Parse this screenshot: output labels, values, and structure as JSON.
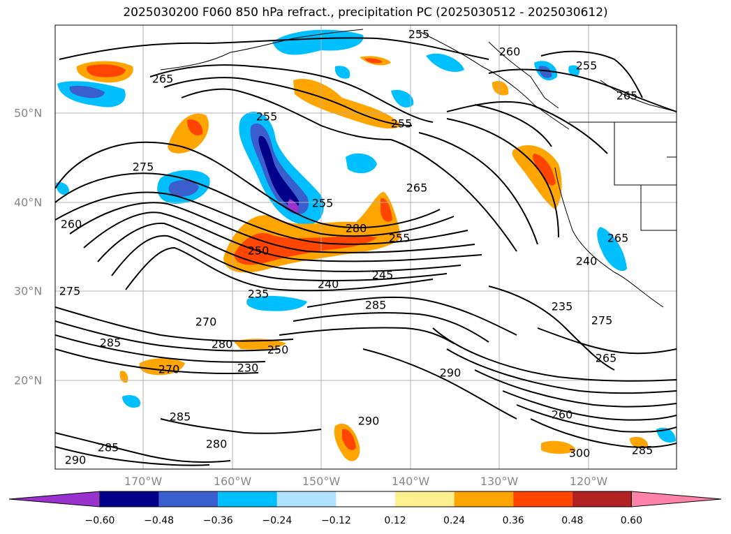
{
  "title": "2025030200 F060 850 hPa refract., precipitation PC (2025030512 - 2025030612)",
  "lon_labels": [
    "170°W",
    "160°W",
    "150°W",
    "140°W",
    "130°W",
    "120°W"
  ],
  "lat_labels": [
    "50°N",
    "40°N",
    "30°N",
    "20°N"
  ],
  "contour_labels": [
    "255",
    "260",
    "255",
    "265",
    "265",
    "255",
    "255",
    "275",
    "265",
    "260",
    "280",
    "265",
    "255",
    "255",
    "250",
    "245",
    "240",
    "240",
    "235",
    "275",
    "285",
    "235",
    "270",
    "285",
    "280",
    "250",
    "275",
    "270",
    "230",
    "265",
    "290",
    "285",
    "260",
    "280",
    "290",
    "285",
    "300",
    "285",
    "290"
  ],
  "colorbar": {
    "colors": [
      "#9a32cd",
      "#00008b",
      "#3a5fcd",
      "#00bfff",
      "#b0e2ff",
      "#ffffff",
      "#fff08f",
      "#ffa500",
      "#ff4500",
      "#b22222",
      "#ff82ab"
    ],
    "ticks": [
      "−0.60",
      "−0.48",
      "−0.36",
      "−0.24",
      "−0.12",
      "0.12",
      "0.24",
      "0.36",
      "0.48",
      "0.60"
    ]
  },
  "fill_colors": {
    "neg_light": "#b0e2ff",
    "neg_mid": "#00bfff",
    "neg_strong": "#3a5fcd",
    "neg_max": "#00008b",
    "neg_extreme": "#9a32cd",
    "pos_light": "#fff08f",
    "pos_mid": "#ffa500",
    "pos_strong": "#ff4500"
  }
}
